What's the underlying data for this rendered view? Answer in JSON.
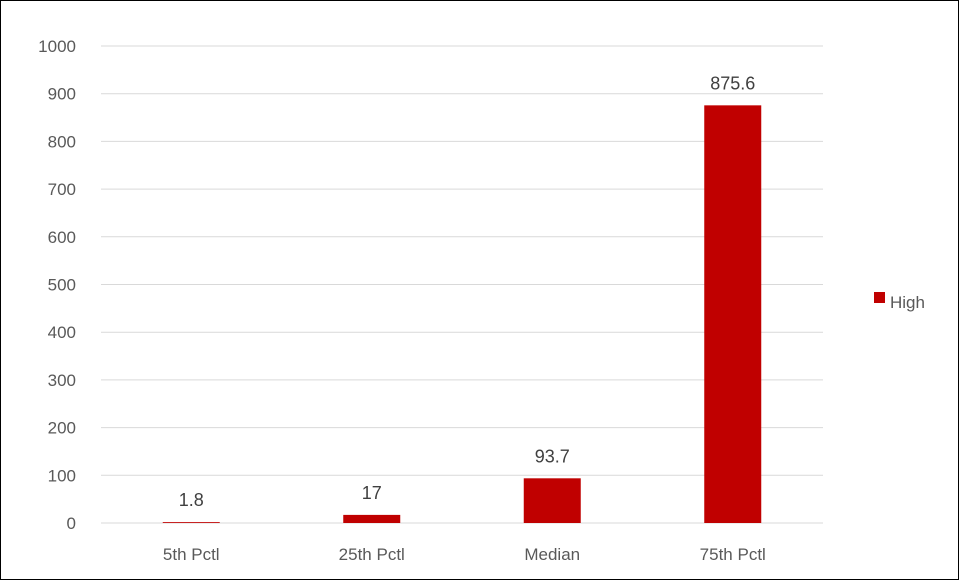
{
  "chart_data": {
    "type": "bar",
    "title": "",
    "xlabel": "",
    "ylabel": "",
    "categories": [
      "5th Pctl",
      "25th Pctl",
      "Median",
      "75th Pctl"
    ],
    "series": [
      {
        "name": "High",
        "color": "#c00000",
        "values": [
          1.8,
          17,
          93.7,
          875.6
        ],
        "data_labels": [
          "1.8",
          "17",
          "93.7",
          "875.6"
        ]
      }
    ],
    "ylim": [
      0,
      1000
    ],
    "yticks": [
      0,
      100,
      200,
      300,
      400,
      500,
      600,
      700,
      800,
      900,
      1000
    ],
    "ytick_labels": [
      "0",
      "100",
      "200",
      "300",
      "400",
      "500",
      "600",
      "700",
      "800",
      "900",
      "1000"
    ],
    "grid": true,
    "legend": {
      "position": "right",
      "entries": [
        "High"
      ]
    },
    "colors": {
      "bar": "#c00000",
      "gridline": "#d9d9d9",
      "tick_text": "#595959",
      "label_text": "#404040",
      "frame": "#000000"
    }
  }
}
